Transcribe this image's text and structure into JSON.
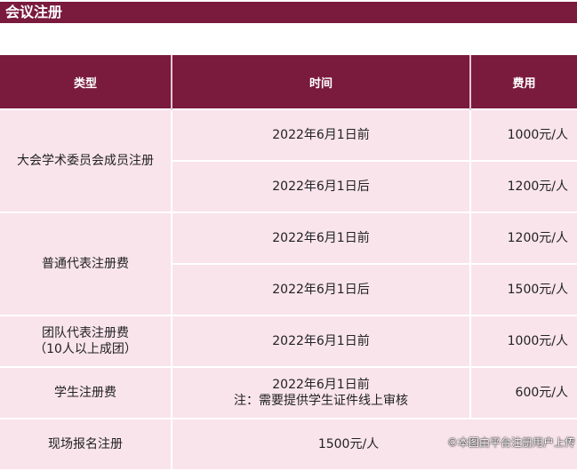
{
  "title": "会议注册",
  "headers": [
    "类型",
    "时间",
    "费用"
  ],
  "groups": [
    {
      "type": "大会学术委员会成员注册",
      "rows": [
        {
          "time": "2022年6月1日前",
          "fee": "1000元/人"
        },
        {
          "time": "2022年6月1日后",
          "fee": "1200元/人"
        }
      ]
    },
    {
      "type": "普通代表注册费",
      "rows": [
        {
          "time": "2022年6月1日前",
          "fee": "1200元/人"
        },
        {
          "time": "2022年6月1日后",
          "fee": "1500元/人"
        }
      ]
    },
    {
      "type": "团队代表注册费",
      "type2": "（10人以上成团）",
      "rows": [
        {
          "time": "2022年6月1日前",
          "fee": "1000元/人"
        }
      ]
    },
    {
      "type": "学生注册费",
      "rows": [
        {
          "time": "2022年6月1日前",
          "note": "注：需要提供学生证件线上审核",
          "fee": "600元/人"
        }
      ]
    }
  ],
  "onsite": {
    "type": "现场报名注册",
    "fee": "1500元/人"
  },
  "watermark": "©本图由平台注册用户上传",
  "colors": {
    "accent": "#7a1a3c",
    "cell": "#f9e4ec"
  }
}
